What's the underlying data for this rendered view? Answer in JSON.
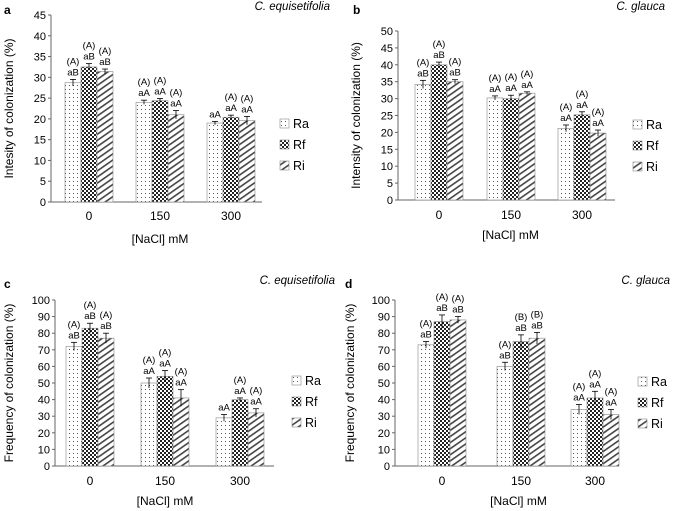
{
  "figure_description": "",
  "chart_data": [
    {
      "panel_letter": "a",
      "type": "bar",
      "title": "C. equisetifolia",
      "xlabel": "[NaCl] mM",
      "ylabel": "Intesity of colonization (%)",
      "categories": [
        "0",
        "150",
        "300"
      ],
      "ylim": [
        0,
        45
      ],
      "ytick_step": 5,
      "series": [
        {
          "name": "Ra",
          "values": [
            28.7,
            24.0,
            19.0
          ],
          "errors": [
            0.8,
            0.5,
            0.4
          ],
          "labels": [
            [
              "(A)",
              "aB"
            ],
            [
              "(A)",
              "aA"
            ],
            [
              "",
              "aA"
            ]
          ]
        },
        {
          "name": "Rf",
          "values": [
            32.5,
            24.4,
            20.4
          ],
          "errors": [
            0.8,
            0.5,
            0.5
          ],
          "labels": [
            [
              "(A)",
              "aB"
            ],
            [
              "(A)",
              "aA"
            ],
            [
              "(A)",
              "aA"
            ]
          ]
        },
        {
          "name": "Ri",
          "values": [
            31.4,
            21.0,
            19.6
          ],
          "errors": [
            0.6,
            1.0,
            1.0
          ],
          "labels": [
            [
              "(A)",
              "aB"
            ],
            [
              "(A)",
              "aA"
            ],
            [
              "(A)",
              "aA"
            ]
          ]
        }
      ],
      "legend_position": "right"
    },
    {
      "panel_letter": "b",
      "type": "bar",
      "title": "C. glauca",
      "xlabel": "[NaCl] mM",
      "ylabel": "Intensity of colonization (%)",
      "categories": [
        "0",
        "150",
        "300"
      ],
      "ylim": [
        0,
        50
      ],
      "ytick_step": 5,
      "series": [
        {
          "name": "Ra",
          "values": [
            34.2,
            30.2,
            21.2
          ],
          "errors": [
            1.2,
            0.6,
            1.0
          ],
          "labels": [
            [
              "(A)",
              "aB"
            ],
            [
              "(A)",
              "aA"
            ],
            [
              "(A)",
              "aA"
            ]
          ]
        },
        {
          "name": "Rf",
          "values": [
            40.0,
            30.0,
            25.2
          ],
          "errors": [
            0.8,
            1.0,
            0.9
          ],
          "labels": [
            [
              "(A)",
              "aB"
            ],
            [
              "(A)",
              "aA"
            ],
            [
              "(A)",
              "aA"
            ]
          ]
        },
        {
          "name": "Ri",
          "values": [
            35.0,
            31.6,
            19.8
          ],
          "errors": [
            0.6,
            0.4,
            0.9
          ],
          "labels": [
            [
              "(A)",
              "aB"
            ],
            [
              "(A)",
              "aA"
            ],
            [
              "(A)",
              "aA"
            ]
          ]
        }
      ],
      "legend_position": "right"
    },
    {
      "panel_letter": "c",
      "type": "bar",
      "title": "C. equisetifolia",
      "xlabel": "[NaCl] mM",
      "ylabel": "Frequency of colonization (%)",
      "categories": [
        "0",
        "150",
        "300"
      ],
      "ylim": [
        0,
        100
      ],
      "ytick_step": 10,
      "series": [
        {
          "name": "Ra",
          "values": [
            72,
            50,
            29
          ],
          "errors": [
            2.5,
            3,
            2
          ],
          "labels": [
            [
              "(A)",
              "aB"
            ],
            [
              "(A)",
              "aA"
            ],
            [
              "",
              "aA"
            ]
          ]
        },
        {
          "name": "Rf",
          "values": [
            83,
            54,
            40
          ],
          "errors": [
            3,
            3.5,
            1
          ],
          "labels": [
            [
              "(A)",
              "aB"
            ],
            [
              "(A)",
              "aA"
            ],
            [
              "(A)",
              "aA"
            ]
          ]
        },
        {
          "name": "Ri",
          "values": [
            77,
            41,
            32
          ],
          "errors": [
            3,
            5,
            2.5
          ],
          "labels": [
            [
              "(A)",
              "aB"
            ],
            [
              "(A)",
              "aA"
            ],
            [
              "(A)",
              "aA"
            ]
          ]
        }
      ],
      "legend_position": "right"
    },
    {
      "panel_letter": "d",
      "type": "bar",
      "title": "C. glauca",
      "xlabel": "[NaCl] mM",
      "ylabel": "Frequency of colonization (%)",
      "categories": [
        "0",
        "150",
        "300"
      ],
      "ylim": [
        0,
        100
      ],
      "ytick_step": 10,
      "series": [
        {
          "name": "Ra",
          "values": [
            73,
            60,
            34
          ],
          "errors": [
            2,
            2.5,
            3
          ],
          "labels": [
            [
              "(A)",
              "aB"
            ],
            [
              "(A)",
              "aB"
            ],
            [
              "(A)",
              "aA"
            ]
          ]
        },
        {
          "name": "Rf",
          "values": [
            87,
            75,
            41
          ],
          "errors": [
            4,
            4,
            4
          ],
          "labels": [
            [
              "(A)",
              "aB"
            ],
            [
              "(B)",
              "aB"
            ],
            [
              "(A)",
              "aA"
            ]
          ]
        },
        {
          "name": "Ri",
          "values": [
            88,
            77,
            31
          ],
          "errors": [
            2,
            3.5,
            3
          ],
          "labels": [
            [
              "(A)",
              "aB"
            ],
            [
              "(B)",
              "aB"
            ],
            [
              "(A)",
              "aA"
            ]
          ]
        }
      ],
      "legend_position": "right"
    }
  ]
}
